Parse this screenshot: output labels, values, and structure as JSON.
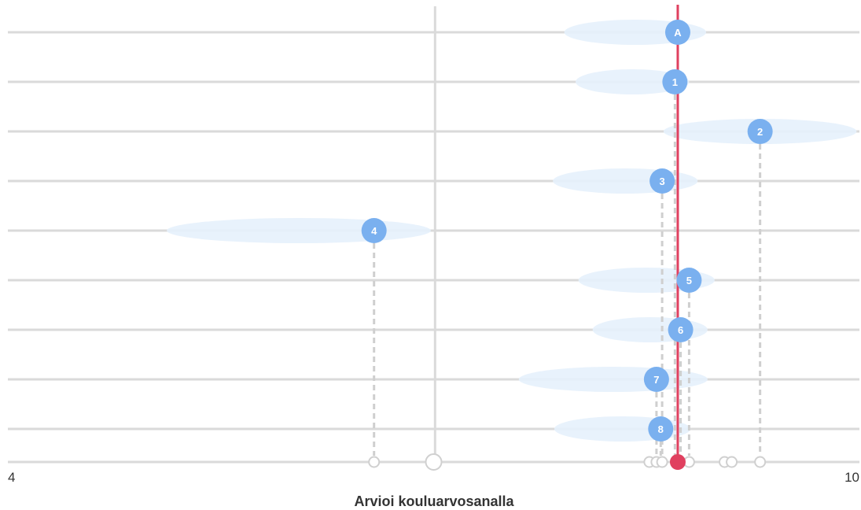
{
  "chart_data": {
    "type": "scatter",
    "xlabel": "Arvioi kouluarvosanalla",
    "xlim": [
      4,
      10
    ],
    "x_tick_labels": [
      "4",
      "10"
    ],
    "reference_value": 8.72,
    "points": [
      {
        "label": "A",
        "x": 8.72,
        "spread_low": 7.92,
        "spread_high": 8.92
      },
      {
        "label": "1",
        "x": 8.7,
        "spread_low": 8.0,
        "spread_high": 8.8
      },
      {
        "label": "2",
        "x": 9.3,
        "spread_low": 8.62,
        "spread_high": 9.98
      },
      {
        "label": "3",
        "x": 8.61,
        "spread_low": 7.84,
        "spread_high": 8.86
      },
      {
        "label": "4",
        "x": 6.58,
        "spread_low": 5.12,
        "spread_high": 6.98
      },
      {
        "label": "5",
        "x": 8.8,
        "spread_low": 8.02,
        "spread_high": 8.98
      },
      {
        "label": "6",
        "x": 8.74,
        "spread_low": 8.12,
        "spread_high": 8.93
      },
      {
        "label": "7",
        "x": 8.57,
        "spread_low": 7.6,
        "spread_high": 8.93
      },
      {
        "label": "8",
        "x": 8.6,
        "spread_low": 7.85,
        "spread_high": 8.81
      }
    ],
    "axis_values": [
      7.0,
      6.58,
      8.52,
      8.57,
      8.61,
      8.72,
      8.8,
      9.05,
      9.1,
      9.3
    ],
    "colors": {
      "marker": "#7ab0ef",
      "spread": "#e6f1fc",
      "reference": "#e0405f",
      "grid": "#dadada"
    },
    "grid": true
  }
}
